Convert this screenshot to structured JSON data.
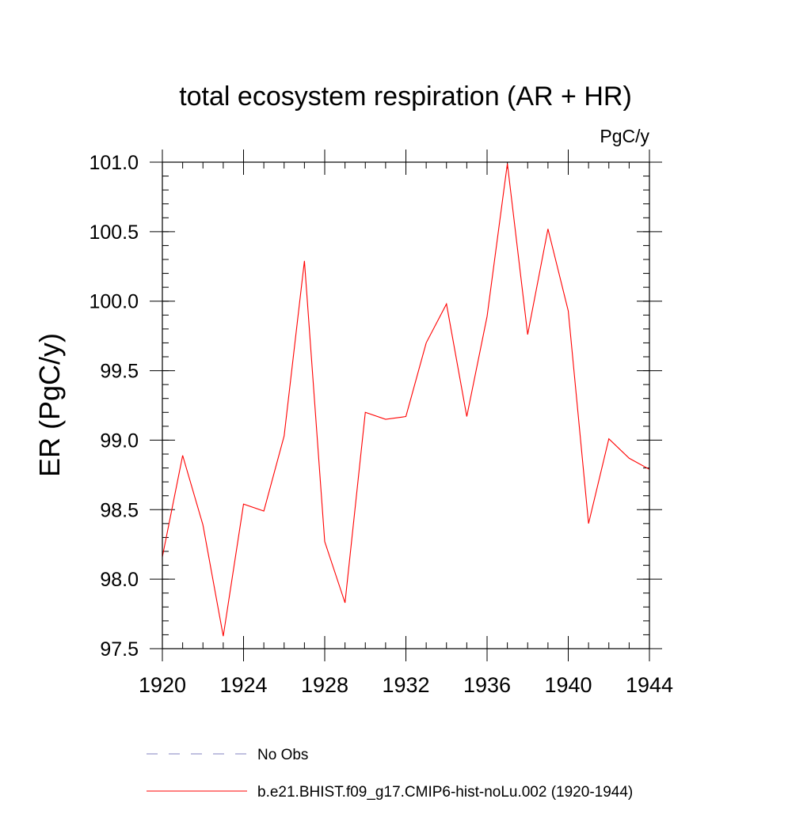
{
  "chart_data": {
    "type": "line",
    "title": "total ecosystem respiration (AR + HR)",
    "units_label": "PgC/y",
    "ylabel": "ER  (PgC/y)",
    "xlabel": "",
    "xlim": [
      1920,
      1944
    ],
    "ylim": [
      97.5,
      101.0
    ],
    "x_ticks": [
      1920,
      1924,
      1928,
      1932,
      1936,
      1940,
      1944
    ],
    "x_tick_labels": [
      "1920",
      "1924",
      "1928",
      "1932",
      "1936",
      "1940",
      "1944"
    ],
    "y_ticks": [
      97.5,
      98.0,
      98.5,
      99.0,
      99.5,
      100.0,
      100.5,
      101.0
    ],
    "y_tick_labels": [
      "97.5",
      "98.0",
      "98.5",
      "99.0",
      "99.5",
      "100.0",
      "100.5",
      "101.0"
    ],
    "x_minor_step": 1,
    "y_minor_step": 0.1,
    "grid": false,
    "legend_position": "bottom",
    "series": [
      {
        "name": "No Obs",
        "color": "#8080c0",
        "dash": "dashed",
        "x": [],
        "values": []
      },
      {
        "name": "b.e21.BHIST.f09_g17.CMIP6-hist-noLu.002 (1920-1944)",
        "color": "#ff0000",
        "dash": "solid",
        "x": [
          1920,
          1921,
          1922,
          1923,
          1924,
          1925,
          1926,
          1927,
          1928,
          1929,
          1930,
          1931,
          1932,
          1933,
          1934,
          1935,
          1936,
          1937,
          1938,
          1939,
          1940,
          1941,
          1942,
          1943,
          1944
        ],
        "values": [
          98.16,
          98.89,
          98.39,
          97.59,
          98.54,
          98.49,
          99.03,
          100.29,
          98.27,
          97.83,
          99.2,
          99.15,
          99.17,
          99.7,
          99.98,
          99.17,
          99.89,
          100.99,
          99.76,
          100.52,
          99.93,
          98.4,
          99.01,
          98.87,
          98.79
        ]
      }
    ]
  }
}
